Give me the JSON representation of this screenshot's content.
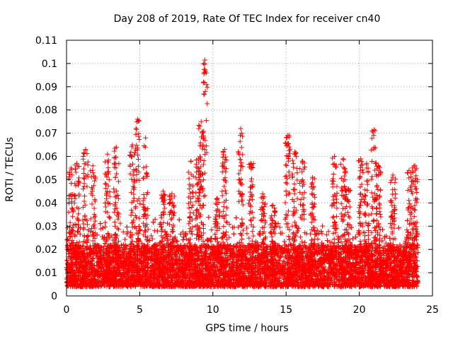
{
  "chart_data": {
    "type": "scatter",
    "title": "Day 208 of 2019, Rate Of TEC Index for receiver cn40",
    "xlabel": "GPS time / hours",
    "ylabel": "ROTI / TECUs",
    "xlim": [
      0,
      25
    ],
    "ylim": [
      0,
      0.11
    ],
    "x_ticks": [
      0,
      5,
      10,
      15,
      20,
      25
    ],
    "x_tick_labels": [
      "0",
      "5",
      "10",
      "15",
      "20",
      "25"
    ],
    "y_ticks": [
      0,
      0.01,
      0.02,
      0.03,
      0.04,
      0.05,
      0.06,
      0.07,
      0.08,
      0.09,
      0.1,
      0.11
    ],
    "y_tick_labels": [
      "0",
      "0.01",
      "0.02",
      "0.03",
      "0.04",
      "0.05",
      "0.06",
      "0.07",
      "0.08",
      "0.09",
      "0.1",
      "0.11"
    ],
    "grid": true,
    "marker": "+",
    "series": [
      {
        "name": "ROTI",
        "color": "#ff0000",
        "baseline_min": 0.004,
        "baseline_max": 0.022,
        "x_range": [
          0,
          24
        ],
        "num_points": 9000,
        "peaks": [
          {
            "x": 0.3,
            "y": 0.055
          },
          {
            "x": 0.7,
            "y": 0.057
          },
          {
            "x": 1.3,
            "y": 0.063
          },
          {
            "x": 1.8,
            "y": 0.056
          },
          {
            "x": 2.8,
            "y": 0.061
          },
          {
            "x": 3.4,
            "y": 0.064
          },
          {
            "x": 4.5,
            "y": 0.065
          },
          {
            "x": 4.85,
            "y": 0.076
          },
          {
            "x": 5.4,
            "y": 0.068
          },
          {
            "x": 6.6,
            "y": 0.045
          },
          {
            "x": 7.2,
            "y": 0.044
          },
          {
            "x": 8.5,
            "y": 0.058
          },
          {
            "x": 9.0,
            "y": 0.059
          },
          {
            "x": 9.2,
            "y": 0.075
          },
          {
            "x": 9.45,
            "y": 0.1015
          },
          {
            "x": 10.3,
            "y": 0.042
          },
          {
            "x": 10.8,
            "y": 0.063
          },
          {
            "x": 11.9,
            "y": 0.072
          },
          {
            "x": 12.6,
            "y": 0.057
          },
          {
            "x": 13.4,
            "y": 0.044
          },
          {
            "x": 14.1,
            "y": 0.039
          },
          {
            "x": 15.1,
            "y": 0.069
          },
          {
            "x": 15.6,
            "y": 0.062
          },
          {
            "x": 16.1,
            "y": 0.058
          },
          {
            "x": 16.8,
            "y": 0.051
          },
          {
            "x": 18.3,
            "y": 0.06
          },
          {
            "x": 18.9,
            "y": 0.059
          },
          {
            "x": 19.2,
            "y": 0.046
          },
          {
            "x": 20.1,
            "y": 0.059
          },
          {
            "x": 20.5,
            "y": 0.057
          },
          {
            "x": 21.0,
            "y": 0.0715
          },
          {
            "x": 21.3,
            "y": 0.056
          },
          {
            "x": 22.3,
            "y": 0.052
          },
          {
            "x": 23.4,
            "y": 0.054
          },
          {
            "x": 23.8,
            "y": 0.056
          }
        ]
      }
    ]
  }
}
